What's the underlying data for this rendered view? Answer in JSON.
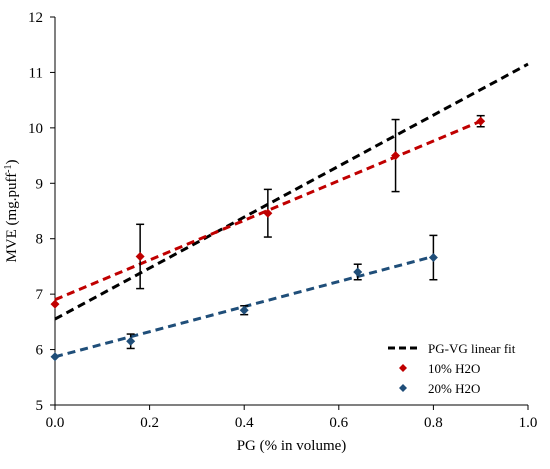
{
  "chart_data": {
    "type": "scatter",
    "xlabel": "PG (% in volume)",
    "ylabel": "MVE (mg.puff",
    "ylabel_sup": "-1",
    "ylabel_close": ")",
    "xlim": [
      0,
      1
    ],
    "ylim": [
      5,
      12
    ],
    "x_ticks": [
      "0.0",
      "0.2",
      "0.4",
      "0.6",
      "0.8",
      "1.0"
    ],
    "y_ticks": [
      "5",
      "6",
      "7",
      "8",
      "9",
      "10",
      "11",
      "12"
    ],
    "grid": false,
    "legend_position": "bottom-right",
    "fit_line": {
      "name": "PG-VG linear fit",
      "color": "#000000",
      "x": [
        0.0,
        1.0
      ],
      "y": [
        6.55,
        11.15
      ]
    },
    "series": [
      {
        "name": "10% H2O",
        "color": "#c00000",
        "marker": "diamond",
        "x": [
          0.0,
          0.18,
          0.45,
          0.72,
          0.9
        ],
        "y": [
          6.82,
          7.68,
          8.46,
          9.5,
          10.12
        ],
        "err": [
          0.0,
          0.58,
          0.43,
          0.65,
          0.1
        ],
        "trend": {
          "x": [
            0.0,
            0.9
          ],
          "y": [
            6.9,
            10.12
          ]
        }
      },
      {
        "name": "20% H2O",
        "color": "#1f4e79",
        "marker": "diamond",
        "x": [
          0.0,
          0.16,
          0.4,
          0.64,
          0.8
        ],
        "y": [
          5.87,
          6.15,
          6.71,
          7.4,
          7.66
        ],
        "err": [
          0.0,
          0.13,
          0.08,
          0.14,
          0.4
        ],
        "trend": {
          "x": [
            0.0,
            0.8
          ],
          "y": [
            5.87,
            7.68
          ]
        }
      }
    ]
  }
}
